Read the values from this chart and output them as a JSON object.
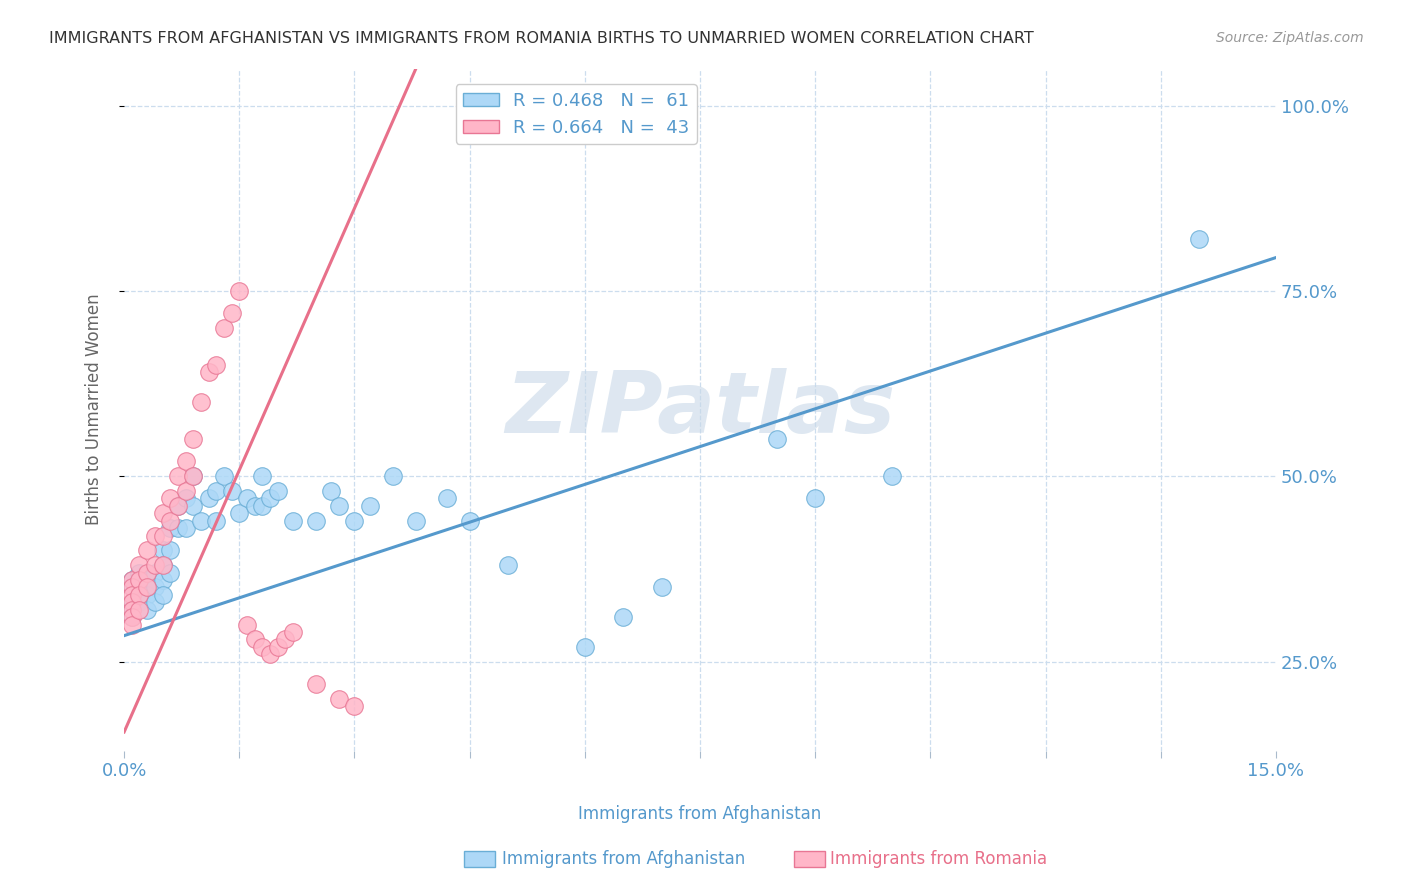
{
  "title": "IMMIGRANTS FROM AFGHANISTAN VS IMMIGRANTS FROM ROMANIA BIRTHS TO UNMARRIED WOMEN CORRELATION CHART",
  "source": "Source: ZipAtlas.com",
  "ylabel": "Births to Unmarried Women",
  "yticks": [
    "100.0%",
    "75.0%",
    "50.0%",
    "25.0%"
  ],
  "ytick_vals": [
    1.0,
    0.75,
    0.5,
    0.25
  ],
  "legend_blue": "R = 0.468   N =  61",
  "legend_pink": "R = 0.664   N =  43",
  "blue_color": "#ADD8F7",
  "pink_color": "#FFB6C8",
  "blue_edge_color": "#6AAED6",
  "pink_edge_color": "#E87694",
  "blue_line_color": "#5599CC",
  "pink_line_color": "#E8708A",
  "watermark": "ZIPatlas",
  "watermark_color": "#C8D8E8",
  "background_color": "#FFFFFF",
  "x_min": 0.0,
  "x_max": 0.15,
  "y_min": 0.13,
  "y_max": 1.05,
  "blue_scatter_x": [
    0.001,
    0.001,
    0.001,
    0.001,
    0.001,
    0.002,
    0.002,
    0.002,
    0.002,
    0.003,
    0.003,
    0.003,
    0.003,
    0.003,
    0.004,
    0.004,
    0.004,
    0.005,
    0.005,
    0.005,
    0.005,
    0.006,
    0.006,
    0.006,
    0.007,
    0.007,
    0.008,
    0.008,
    0.009,
    0.009,
    0.01,
    0.011,
    0.012,
    0.012,
    0.013,
    0.014,
    0.015,
    0.016,
    0.017,
    0.018,
    0.018,
    0.019,
    0.02,
    0.022,
    0.025,
    0.027,
    0.028,
    0.03,
    0.032,
    0.035,
    0.038,
    0.042,
    0.045,
    0.05,
    0.06,
    0.065,
    0.07,
    0.085,
    0.09,
    0.1,
    0.14
  ],
  "blue_scatter_y": [
    0.35,
    0.36,
    0.33,
    0.32,
    0.31,
    0.37,
    0.36,
    0.34,
    0.33,
    0.37,
    0.36,
    0.35,
    0.34,
    0.32,
    0.37,
    0.35,
    0.33,
    0.4,
    0.38,
    0.36,
    0.34,
    0.43,
    0.4,
    0.37,
    0.46,
    0.43,
    0.47,
    0.43,
    0.5,
    0.46,
    0.44,
    0.47,
    0.48,
    0.44,
    0.5,
    0.48,
    0.45,
    0.47,
    0.46,
    0.5,
    0.46,
    0.47,
    0.48,
    0.44,
    0.44,
    0.48,
    0.46,
    0.44,
    0.46,
    0.5,
    0.44,
    0.47,
    0.44,
    0.38,
    0.27,
    0.31,
    0.35,
    0.55,
    0.47,
    0.5,
    0.82
  ],
  "pink_scatter_x": [
    0.001,
    0.001,
    0.001,
    0.001,
    0.001,
    0.001,
    0.001,
    0.002,
    0.002,
    0.002,
    0.002,
    0.003,
    0.003,
    0.003,
    0.004,
    0.004,
    0.005,
    0.005,
    0.005,
    0.006,
    0.006,
    0.007,
    0.007,
    0.008,
    0.008,
    0.009,
    0.009,
    0.01,
    0.011,
    0.012,
    0.013,
    0.014,
    0.015,
    0.016,
    0.017,
    0.018,
    0.019,
    0.02,
    0.021,
    0.022,
    0.025,
    0.028,
    0.03
  ],
  "pink_scatter_y": [
    0.36,
    0.35,
    0.34,
    0.33,
    0.32,
    0.31,
    0.3,
    0.38,
    0.36,
    0.34,
    0.32,
    0.4,
    0.37,
    0.35,
    0.42,
    0.38,
    0.45,
    0.42,
    0.38,
    0.47,
    0.44,
    0.5,
    0.46,
    0.52,
    0.48,
    0.55,
    0.5,
    0.6,
    0.64,
    0.65,
    0.7,
    0.72,
    0.75,
    0.3,
    0.28,
    0.27,
    0.26,
    0.27,
    0.28,
    0.29,
    0.22,
    0.2,
    0.19
  ],
  "blue_line_x": [
    0.0,
    0.15
  ],
  "blue_line_y": [
    0.285,
    0.795
  ],
  "pink_line_x": [
    0.0,
    0.038
  ],
  "pink_line_y": [
    0.155,
    1.05
  ]
}
